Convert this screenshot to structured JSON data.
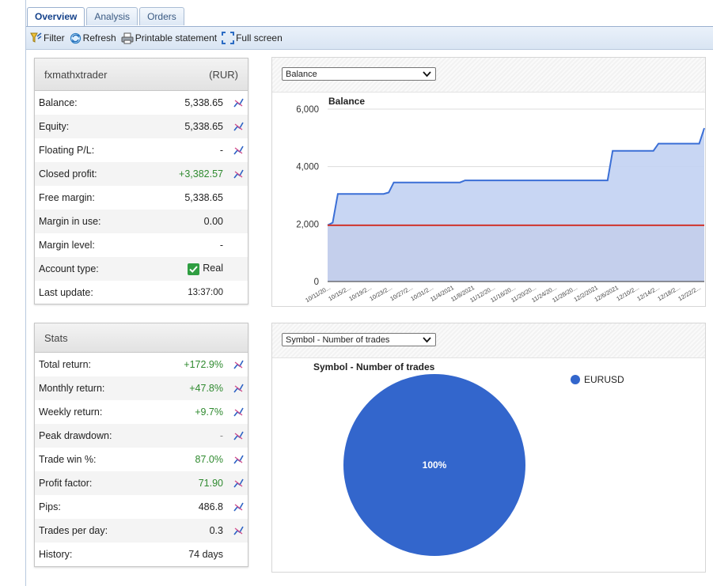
{
  "tabs": [
    "Overview",
    "Analysis",
    "Orders"
  ],
  "toolbar": {
    "filter": "Filter",
    "refresh": "Refresh",
    "print": "Printable statement",
    "fullscreen": "Full screen"
  },
  "account": {
    "name": "fxmathxtrader",
    "currency": "(RUR)",
    "rows": [
      {
        "label": "Balance:",
        "value": "5,338.65"
      },
      {
        "label": "Equity:",
        "value": "5,338.65"
      },
      {
        "label": "Floating P/L:",
        "value": "-"
      },
      {
        "label": "Closed profit:",
        "value": "+3,382.57"
      },
      {
        "label": "Free margin:",
        "value": "5,338.65"
      },
      {
        "label": "Margin in use:",
        "value": "0.00"
      },
      {
        "label": "Margin level:",
        "value": "-"
      },
      {
        "label": "Account type:",
        "value": "Real"
      },
      {
        "label": "Last update:",
        "value": "13:37:00"
      }
    ]
  },
  "stats": {
    "title": "Stats",
    "rows": [
      {
        "label": "Total return:",
        "value": "+172.9%"
      },
      {
        "label": "Monthly return:",
        "value": "+47.8%"
      },
      {
        "label": "Weekly return:",
        "value": "+9.7%"
      },
      {
        "label": "Peak drawdown:",
        "value": "-"
      },
      {
        "label": "Trade win %:",
        "value": "87.0%"
      },
      {
        "label": "Profit factor:",
        "value": "71.90"
      },
      {
        "label": "Pips:",
        "value": "486.8"
      },
      {
        "label": "Trades per day:",
        "value": "0.3"
      },
      {
        "label": "History:",
        "value": "74 days"
      }
    ]
  },
  "balance_select": "Balance",
  "pie_select": "Symbol - Number of trades",
  "colors": {
    "balance_line": "#3b6fd6",
    "balance_fill": "#c3d2f2",
    "zero_line": "#d0342c",
    "zero_fill": "#c9a0a8",
    "pie": "#3366cc",
    "positive": "#2f8a2f"
  },
  "chart_data": [
    {
      "type": "area",
      "title": "Balance",
      "ylim": [
        0,
        6000
      ],
      "yticks": [
        "6,000",
        "4,000",
        "2,000",
        "0"
      ],
      "x_tick_labels": [
        "10/11/20...",
        "10/15/2...",
        "10/19/2...",
        "10/23/2...",
        "10/27/2...",
        "10/31/2...",
        "11/4/2021",
        "11/8/2021",
        "11/12/20...",
        "11/16/20...",
        "11/20/20...",
        "11/24/20...",
        "11/28/20...",
        "12/2/2021",
        "12/6/2021",
        "12/10/2...",
        "12/14/2...",
        "12/18/2...",
        "12/22/2..."
      ],
      "series": [
        {
          "values": [
            1956,
            2050,
            3050,
            3050,
            3050,
            3050,
            3050,
            3050,
            3050,
            3050,
            3050,
            3050,
            3100,
            3450,
            3450,
            3450,
            3450,
            3450,
            3450,
            3450,
            3450,
            3450,
            3450,
            3450,
            3450,
            3450,
            3450,
            3520,
            3520,
            3520,
            3520,
            3520,
            3520,
            3520,
            3520,
            3520,
            3520,
            3520,
            3520,
            3520,
            3520,
            3520,
            3520,
            3520,
            3520,
            3520,
            3520,
            3520,
            3520,
            3520,
            3520,
            3520,
            3520,
            3520,
            3520,
            3520,
            4550,
            4550,
            4550,
            4550,
            4550,
            4550,
            4550,
            4550,
            4550,
            4800,
            4800,
            4800,
            4800,
            4800,
            4800,
            4800,
            4800,
            4800,
            5338.65
          ]
        },
        {
          "values": [
            1956,
            1956
          ]
        }
      ]
    },
    {
      "type": "pie",
      "title": "Symbol - Number of trades",
      "categories": [
        "EURUSD"
      ],
      "values": [
        100
      ],
      "slice_labels": [
        "100%"
      ],
      "legend": "right"
    }
  ]
}
